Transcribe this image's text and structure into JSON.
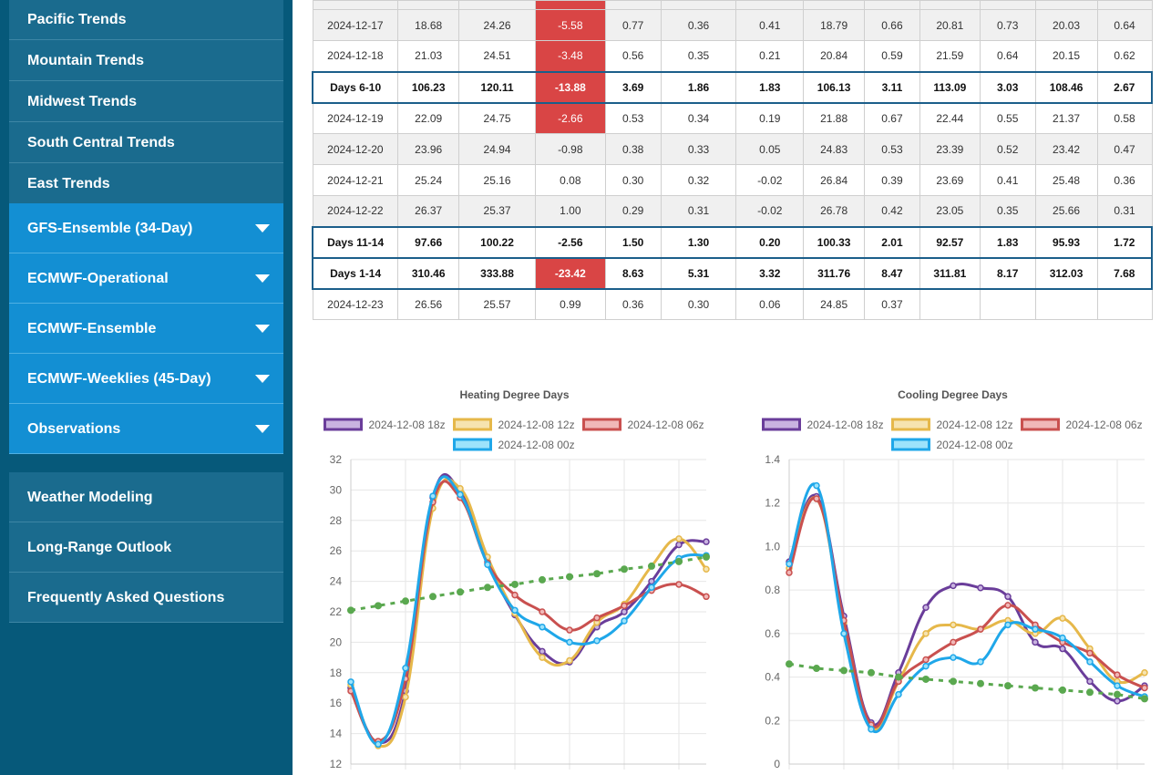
{
  "sidebar": {
    "trend_items": [
      {
        "label": "Pacific Trends"
      },
      {
        "label": "Mountain Trends"
      },
      {
        "label": "Midwest Trends"
      },
      {
        "label": "South Central Trends"
      },
      {
        "label": "East Trends"
      }
    ],
    "model_items": [
      {
        "label": "GFS-Ensemble (34-Day)"
      },
      {
        "label": "ECMWF-Operational"
      },
      {
        "label": "ECMWF-Ensemble"
      },
      {
        "label": "ECMWF-Weeklies (45-Day)"
      },
      {
        "label": "Observations"
      }
    ],
    "nav_items": [
      {
        "label": "Weather Modeling"
      },
      {
        "label": "Long-Range Outlook"
      },
      {
        "label": "Frequently Asked Questions"
      }
    ]
  },
  "table": {
    "rows": [
      {
        "type": "odd",
        "cells": [
          "",
          "",
          "",
          "",
          "",
          "",
          "",
          "",
          "",
          "",
          "",
          "",
          "",
          ""
        ],
        "neg": [
          3
        ]
      },
      {
        "type": "odd",
        "cells": [
          "2024-12-17",
          "18.68",
          "24.26",
          "-5.58",
          "0.77",
          "0.36",
          "0.41",
          "18.79",
          "0.66",
          "20.81",
          "0.73",
          "20.03",
          "0.64"
        ],
        "neg": [
          3
        ]
      },
      {
        "type": "even",
        "cells": [
          "2024-12-18",
          "21.03",
          "24.51",
          "-3.48",
          "0.56",
          "0.35",
          "0.21",
          "20.84",
          "0.59",
          "21.59",
          "0.64",
          "20.15",
          "0.62"
        ],
        "neg": [
          3
        ]
      },
      {
        "type": "sum",
        "cells": [
          "Days 6-10",
          "106.23",
          "120.11",
          "-13.88",
          "3.69",
          "1.86",
          "1.83",
          "106.13",
          "3.11",
          "113.09",
          "3.03",
          "108.46",
          "2.67"
        ],
        "neg": [
          3
        ]
      },
      {
        "type": "even",
        "cells": [
          "2024-12-19",
          "22.09",
          "24.75",
          "-2.66",
          "0.53",
          "0.34",
          "0.19",
          "21.88",
          "0.67",
          "22.44",
          "0.55",
          "21.37",
          "0.58"
        ],
        "neg": [
          3
        ]
      },
      {
        "type": "odd",
        "cells": [
          "2024-12-20",
          "23.96",
          "24.94",
          "-0.98",
          "0.38",
          "0.33",
          "0.05",
          "24.83",
          "0.53",
          "23.39",
          "0.52",
          "23.42",
          "0.47"
        ],
        "neg": []
      },
      {
        "type": "even",
        "cells": [
          "2024-12-21",
          "25.24",
          "25.16",
          "0.08",
          "0.30",
          "0.32",
          "-0.02",
          "26.84",
          "0.39",
          "23.69",
          "0.41",
          "25.48",
          "0.36"
        ],
        "neg": []
      },
      {
        "type": "odd",
        "cells": [
          "2024-12-22",
          "26.37",
          "25.37",
          "1.00",
          "0.29",
          "0.31",
          "-0.02",
          "26.78",
          "0.42",
          "23.05",
          "0.35",
          "25.66",
          "0.31"
        ],
        "neg": []
      },
      {
        "type": "sum",
        "cells": [
          "Days 11-14",
          "97.66",
          "100.22",
          "-2.56",
          "1.50",
          "1.30",
          "0.20",
          "100.33",
          "2.01",
          "92.57",
          "1.83",
          "95.93",
          "1.72"
        ],
        "neg": []
      },
      {
        "type": "sum",
        "cells": [
          "Days 1-14",
          "310.46",
          "333.88",
          "-23.42",
          "8.63",
          "5.31",
          "3.32",
          "311.76",
          "8.47",
          "311.81",
          "8.17",
          "312.03",
          "7.68"
        ],
        "neg": [
          3
        ]
      },
      {
        "type": "even",
        "cells": [
          "2024-12-23",
          "26.56",
          "25.57",
          "0.99",
          "0.36",
          "0.30",
          "0.06",
          "24.85",
          "0.37",
          "",
          "",
          "",
          ""
        ],
        "neg": []
      }
    ]
  },
  "chart_data": [
    {
      "type": "line",
      "title": "Heating Degree Days",
      "ylim": [
        12,
        32
      ],
      "yticks": [
        12,
        14,
        16,
        18,
        20,
        22,
        24,
        26,
        28,
        30,
        32
      ],
      "legend": "top",
      "grid": true,
      "series": [
        {
          "name": "2024-12-08 18z",
          "color": "#6a3d9a",
          "fill": "#c9b3e0",
          "values": [
            17.0,
            13.4,
            16.8,
            29.5,
            29.9,
            25.3,
            21.8,
            19.4,
            18.7,
            21.0,
            22.0,
            24.0,
            26.4,
            26.6
          ]
        },
        {
          "name": "2024-12-08 12z",
          "color": "#e6b84a",
          "fill": "#f6e3b0",
          "values": [
            17.2,
            13.2,
            16.4,
            28.8,
            30.1,
            25.6,
            21.9,
            19.0,
            18.8,
            21.3,
            22.5,
            25.0,
            26.8,
            24.8
          ]
        },
        {
          "name": "2024-12-08 06z",
          "color": "#c9504f",
          "fill": "#f0b8b8",
          "values": [
            16.8,
            13.5,
            17.6,
            29.2,
            29.5,
            25.2,
            23.1,
            22.0,
            20.8,
            21.6,
            22.4,
            23.4,
            23.8,
            23.0
          ]
        },
        {
          "name": "2024-12-08 00z",
          "color": "#1fa7e9",
          "fill": "#9de3fb",
          "values": [
            17.4,
            13.3,
            18.3,
            29.6,
            29.7,
            25.1,
            22.1,
            21.0,
            20.0,
            20.1,
            21.4,
            23.6,
            25.5,
            25.7
          ]
        },
        {
          "name": "",
          "color": "#5aa84f",
          "dashed": true,
          "values": [
            22.1,
            22.4,
            22.7,
            23.0,
            23.3,
            23.6,
            23.8,
            24.1,
            24.3,
            24.5,
            24.8,
            25.0,
            25.3,
            25.6
          ]
        }
      ]
    },
    {
      "type": "line",
      "title": "Cooling Degree Days",
      "ylim": [
        0,
        1.4
      ],
      "yticks": [
        "0",
        "0.2",
        "0.4",
        "0.6",
        "0.8",
        "1.0",
        "1.2",
        "1.4"
      ],
      "legend": "top",
      "grid": true,
      "series": [
        {
          "name": "2024-12-08 18z",
          "color": "#6a3d9a",
          "fill": "#c9b3e0",
          "values": [
            0.93,
            1.23,
            0.68,
            0.19,
            0.42,
            0.72,
            0.82,
            0.81,
            0.77,
            0.56,
            0.53,
            0.38,
            0.29,
            0.36
          ]
        },
        {
          "name": "2024-12-08 12z",
          "color": "#e6b84a",
          "fill": "#f6e3b0",
          "values": [
            0.9,
            1.22,
            0.65,
            0.17,
            0.38,
            0.6,
            0.64,
            0.62,
            0.66,
            0.6,
            0.67,
            0.53,
            0.38,
            0.42
          ]
        },
        {
          "name": "2024-12-08 06z",
          "color": "#c9504f",
          "fill": "#f0b8b8",
          "values": [
            0.88,
            1.22,
            0.66,
            0.18,
            0.38,
            0.48,
            0.56,
            0.62,
            0.73,
            0.64,
            0.56,
            0.51,
            0.41,
            0.35
          ]
        },
        {
          "name": "2024-12-08 00z",
          "color": "#1fa7e9",
          "fill": "#9de3fb",
          "values": [
            0.92,
            1.28,
            0.6,
            0.16,
            0.32,
            0.45,
            0.49,
            0.47,
            0.64,
            0.62,
            0.58,
            0.47,
            0.36,
            0.31
          ]
        },
        {
          "name": "",
          "color": "#5aa84f",
          "dashed": true,
          "values": [
            0.46,
            0.44,
            0.43,
            0.42,
            0.4,
            0.39,
            0.38,
            0.37,
            0.36,
            0.35,
            0.34,
            0.33,
            0.32,
            0.3
          ]
        }
      ]
    }
  ]
}
